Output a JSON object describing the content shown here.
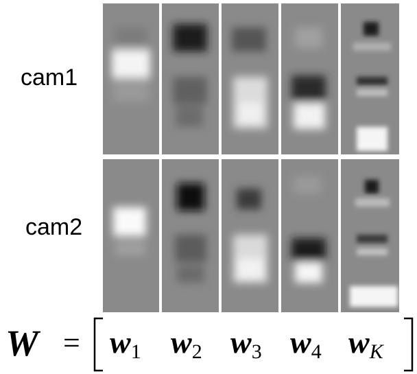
{
  "labels": [
    "cam1",
    "cam2"
  ],
  "formula": {
    "lhs": "W",
    "eq": "=",
    "terms": [
      {
        "base": "w",
        "sub": "1"
      },
      {
        "base": "w",
        "sub": "2"
      },
      {
        "base": "w",
        "sub": "3"
      },
      {
        "base": "w",
        "sub": "4"
      },
      {
        "base": "w",
        "sub": "K"
      }
    ]
  }
}
